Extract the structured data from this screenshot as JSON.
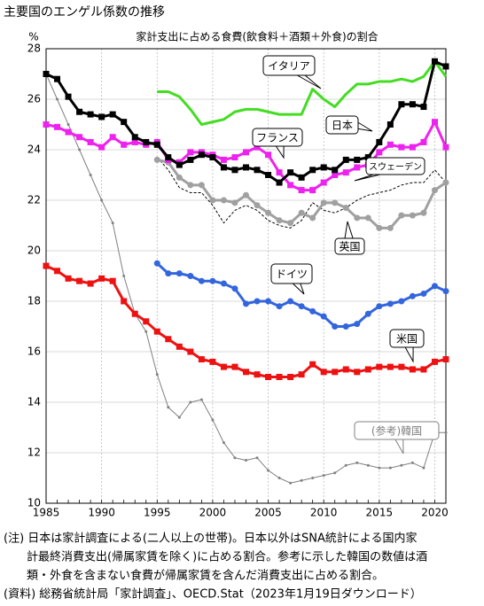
{
  "chart_data": {
    "type": "line",
    "title": "主要国のエンゲル係数の推移",
    "subtitle": "家計支出に占める食費(飲食料＋酒類＋外食)の割合",
    "y_unit": "%",
    "x": [
      1985,
      1986,
      1987,
      1988,
      1989,
      1990,
      1991,
      1992,
      1993,
      1994,
      1995,
      1996,
      1997,
      1998,
      1999,
      2000,
      2001,
      2002,
      2003,
      2004,
      2005,
      2006,
      2007,
      2008,
      2009,
      2010,
      2011,
      2012,
      2013,
      2014,
      2015,
      2016,
      2017,
      2018,
      2019,
      2020,
      2021
    ],
    "xlim": [
      1985,
      2021
    ],
    "xticks": [
      1985,
      1990,
      1995,
      2000,
      2005,
      2010,
      2015,
      2020
    ],
    "ylim": [
      10,
      28
    ],
    "yticks": [
      10,
      12,
      14,
      16,
      18,
      20,
      22,
      24,
      26,
      28
    ],
    "grid": true,
    "series": [
      {
        "name": "(参考)韓国",
        "color": "#808080",
        "marker": "dot",
        "dash": false,
        "width": 1,
        "values": [
          27.0,
          26.0,
          25.0,
          24.0,
          23.0,
          22.0,
          21.1,
          19.0,
          17.5,
          16.8,
          15.1,
          13.8,
          13.4,
          14.0,
          14.1,
          13.3,
          12.4,
          11.8,
          11.7,
          11.8,
          11.3,
          11.0,
          10.8,
          10.9,
          11.0,
          11.1,
          11.2,
          11.5,
          11.6,
          11.5,
          11.4,
          11.4,
          11.5,
          11.6,
          11.4,
          12.8,
          12.8
        ]
      },
      {
        "name": "スウェーデン",
        "color": "#000000",
        "marker": "none",
        "dash": true,
        "width": 1,
        "values": [
          null,
          null,
          null,
          null,
          null,
          null,
          null,
          null,
          null,
          null,
          23.7,
          23.2,
          22.5,
          22.3,
          22.3,
          21.8,
          21.1,
          21.6,
          21.8,
          21.6,
          21.2,
          21.0,
          20.9,
          21.2,
          21.9,
          21.6,
          21.5,
          21.7,
          22.0,
          22.2,
          22.3,
          22.4,
          22.6,
          22.7,
          22.7,
          23.2,
          22.7
        ]
      },
      {
        "name": "英国",
        "color": "#a0a0a0",
        "marker": "circle",
        "dash": false,
        "width": 3,
        "values": [
          null,
          null,
          null,
          null,
          null,
          null,
          null,
          null,
          null,
          null,
          23.6,
          23.5,
          22.9,
          22.6,
          22.6,
          22.0,
          22.0,
          21.9,
          22.2,
          21.8,
          21.5,
          21.2,
          21.1,
          21.5,
          21.3,
          21.9,
          21.9,
          21.7,
          21.3,
          21.3,
          20.9,
          20.9,
          21.4,
          21.4,
          21.5,
          22.4,
          22.7
        ]
      },
      {
        "name": "イタリア",
        "color": "#44dd22",
        "marker": "none",
        "dash": false,
        "width": 3,
        "values": [
          null,
          null,
          null,
          null,
          null,
          null,
          null,
          null,
          null,
          null,
          26.3,
          26.3,
          26.1,
          25.6,
          25.0,
          25.1,
          25.2,
          25.5,
          25.6,
          25.6,
          25.5,
          25.4,
          25.4,
          25.4,
          26.4,
          26.0,
          25.7,
          26.2,
          26.6,
          26.6,
          26.7,
          26.7,
          26.8,
          26.7,
          26.9,
          27.5,
          26.9
        ]
      },
      {
        "name": "フランス",
        "color": "#ee22ee",
        "marker": "square",
        "dash": false,
        "width": 3,
        "values": [
          25.0,
          24.9,
          24.7,
          24.5,
          24.3,
          24.1,
          24.5,
          24.2,
          24.3,
          24.2,
          24.3,
          23.6,
          23.5,
          23.9,
          23.9,
          23.8,
          23.6,
          23.7,
          23.9,
          24.1,
          23.8,
          23.1,
          22.6,
          22.4,
          22.4,
          22.7,
          23.0,
          23.1,
          23.3,
          23.4,
          23.9,
          24.2,
          24.1,
          24.1,
          24.3,
          25.1,
          24.1
        ]
      },
      {
        "name": "日本",
        "color": "#000000",
        "marker": "square",
        "dash": false,
        "width": 3,
        "values": [
          27.0,
          26.8,
          26.1,
          25.5,
          25.4,
          25.3,
          25.4,
          25.1,
          24.5,
          24.3,
          24.2,
          23.7,
          23.4,
          23.6,
          23.8,
          23.7,
          23.3,
          23.2,
          23.3,
          23.2,
          23.0,
          22.7,
          23.1,
          22.9,
          23.2,
          23.3,
          23.2,
          23.6,
          23.6,
          23.7,
          24.3,
          25.0,
          25.8,
          25.8,
          25.7,
          27.5,
          27.3
        ]
      },
      {
        "name": "ドイツ",
        "color": "#3366dd",
        "marker": "circle",
        "dash": false,
        "width": 3,
        "values": [
          null,
          null,
          null,
          null,
          null,
          null,
          null,
          null,
          null,
          null,
          19.5,
          19.1,
          19.1,
          19.0,
          18.8,
          18.8,
          18.7,
          18.5,
          17.9,
          18.0,
          18.0,
          17.8,
          18.0,
          17.8,
          17.6,
          17.4,
          17.0,
          17.0,
          17.1,
          17.5,
          17.8,
          17.9,
          18.0,
          18.2,
          18.3,
          18.6,
          18.4
        ]
      },
      {
        "name": "米国",
        "color": "#ee1111",
        "marker": "square",
        "dash": false,
        "width": 3,
        "values": [
          19.4,
          19.2,
          18.9,
          18.8,
          18.7,
          18.9,
          18.8,
          18.0,
          17.5,
          17.2,
          16.8,
          16.5,
          16.2,
          16.0,
          15.7,
          15.6,
          15.4,
          15.4,
          15.2,
          15.1,
          15.0,
          15.0,
          15.0,
          15.1,
          15.5,
          15.2,
          15.2,
          15.3,
          15.2,
          15.3,
          15.4,
          15.4,
          15.4,
          15.3,
          15.3,
          15.6,
          15.7
        ]
      }
    ],
    "notes": [
      "(注) 日本は家計調査による(二人以上の世帯)。日本以外はSNA統計による国内家",
      "　　計最終消費支出(帰属家賃を除く)に占める割合。参考に示した韓国の数値は酒",
      "　　類・外食を含まない食費が帰属家賃を含んだ消費支出に占める割合。",
      "(資料) 総務省統計局「家計調査」、OECD.Stat（2023年1月19日ダウンロード）"
    ]
  }
}
